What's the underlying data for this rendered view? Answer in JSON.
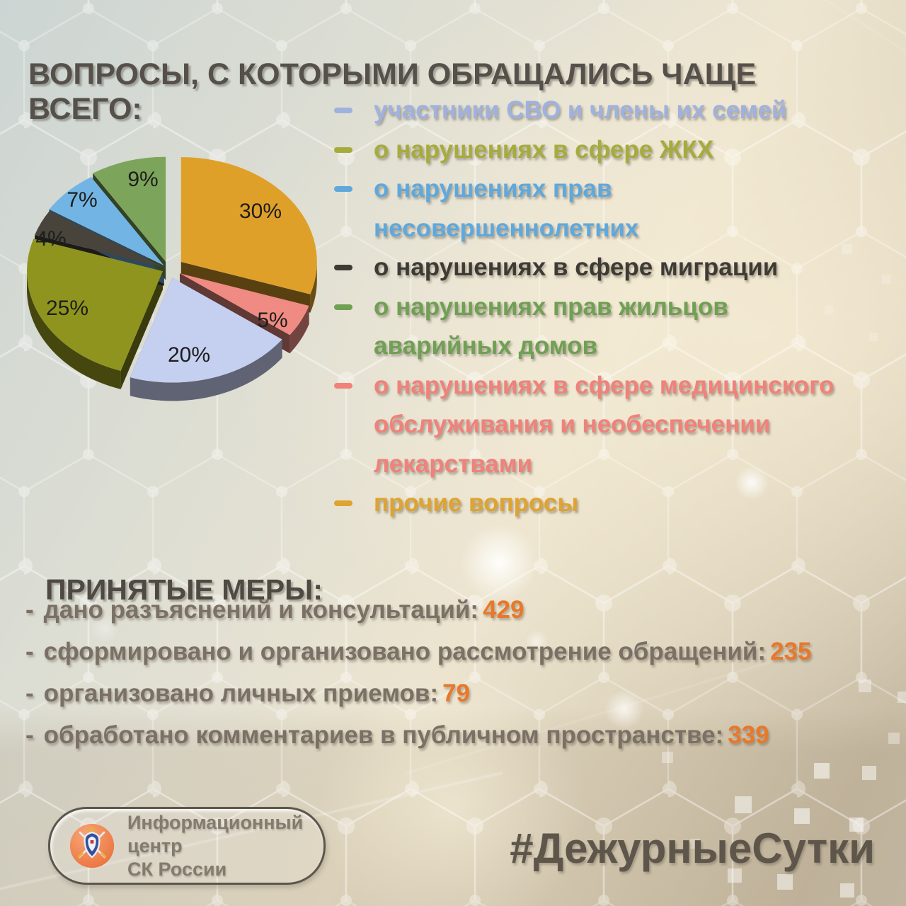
{
  "title": "ВОПРОСЫ, С КОТОРЫМИ ОБРАЩАЛИСЬ ЧАЩЕ ВСЕГО:",
  "chart_data": {
    "type": "pie",
    "title": "Вопросы, с которыми обращались чаще всего",
    "style": "3d-exploded",
    "start_angle_deg": 0,
    "direction": "clockwise",
    "slices": [
      {
        "value": 30,
        "pct_label": "30%",
        "color": "#DFA02A",
        "legend": "прочие вопросы"
      },
      {
        "value": 5,
        "pct_label": "5%",
        "color": "#EF8B83",
        "legend": "о нарушениях в сфере медицинского обслуживания и необеспечении лекарствами"
      },
      {
        "value": 20,
        "pct_label": "20%",
        "color": "#C5CFF0",
        "legend": "участники СВО и члены их семей"
      },
      {
        "value": 25,
        "pct_label": "25%",
        "color": "#8F941F",
        "legend": "о нарушениях в сфере ЖКХ"
      },
      {
        "value": 4,
        "pct_label": "4%",
        "color": "#48443C",
        "legend": "о нарушениях в сфере миграции"
      },
      {
        "value": 7,
        "pct_label": "7%",
        "color": "#72B5E4",
        "legend": "о нарушениях прав несовершеннолетних"
      },
      {
        "value": 9,
        "pct_label": "9%",
        "color": "#7CA45B",
        "legend": "о нарушениях прав жильцов аварийных домов"
      }
    ]
  },
  "legend": {
    "items": [
      {
        "color": "#9FB1DE",
        "text": "участники СВО и члены их семей"
      },
      {
        "color": "#A6AB3D",
        "text": "о нарушениях в сфере ЖКХ"
      },
      {
        "color": "#5FA8DC",
        "text": "о нарушениях прав\nнесовершеннолетних"
      },
      {
        "color": "#3E3B35",
        "text": "о нарушениях в сфере миграции"
      },
      {
        "color": "#6FA053",
        "text": "о нарушениях прав жильцов\nаварийных домов"
      },
      {
        "color": "#F0817B",
        "text": "о нарушениях в сфере медицинского\nобслуживания и необеспечении\nлекарствами"
      },
      {
        "color": "#DFA32F",
        "text": "прочие вопросы"
      }
    ]
  },
  "measures": {
    "title": "ПРИНЯТЫЕ МЕРЫ:",
    "items": [
      {
        "bullet": "-",
        "text": "дано разъяснений и консультаций:",
        "value": "429"
      },
      {
        "bullet": "-",
        "text": "сформировано и организовано рассмотрение обращений:",
        "value": "235"
      },
      {
        "bullet": "-",
        "text": "организовано личных приемов:",
        "value": "79"
      },
      {
        "bullet": "-",
        "text": "обработано комментариев в публичном пространстве:",
        "value": "339"
      }
    ]
  },
  "footer": {
    "logo_text": "Информационный центр\nСК России",
    "hashtag": "#ДежурныеСутки"
  },
  "colors": {
    "accent_number": "#E8782B",
    "title_text": "#55504A",
    "body_text": "#7A7065",
    "hashtag_text": "#5E564B"
  }
}
